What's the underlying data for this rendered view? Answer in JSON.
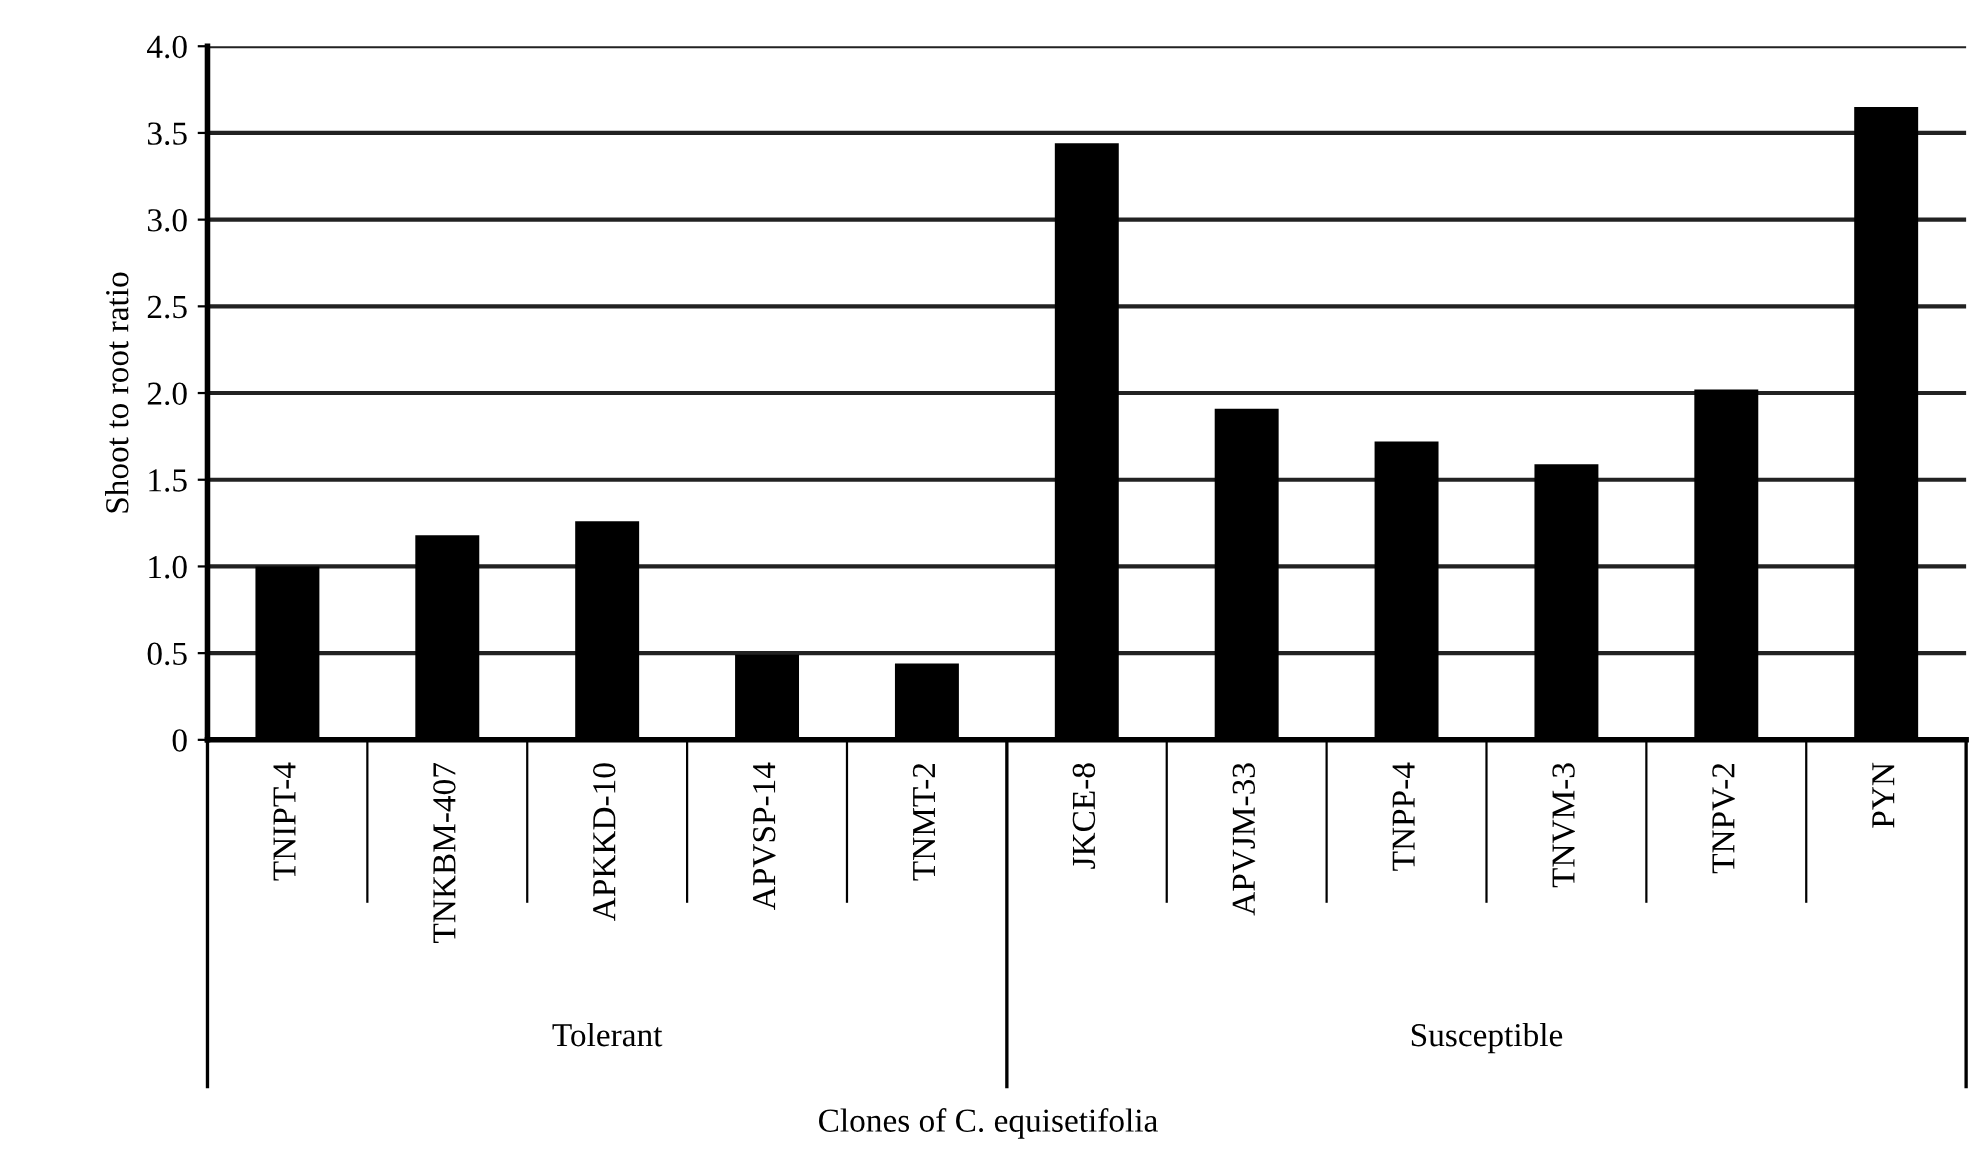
{
  "chart_data": {
    "type": "bar",
    "xlabel": "Clones of C. equisetifolia",
    "ylabel": "Shoot to root ratio",
    "categories": [
      "TNIPT-4",
      "TNKBM-407",
      "APKKD-10",
      "APVSP-14",
      "TNMT-2",
      "JKCE-8",
      "APVJM-33",
      "TNPP-4",
      "TNVM-3",
      "TNPV-2",
      "PYN"
    ],
    "values": [
      1.0,
      1.18,
      1.26,
      0.49,
      0.44,
      3.44,
      1.91,
      1.72,
      1.59,
      2.02,
      3.65
    ],
    "color": "#000000",
    "ylim": [
      0,
      4.0
    ],
    "yticks": [
      {
        "value": 0,
        "label": "0"
      },
      0.5,
      {
        "value": 1,
        "label": "1.0"
      },
      1.5,
      {
        "value": 2,
        "label": "2.0"
      },
      2.5,
      {
        "value": 3,
        "label": "3.0"
      },
      3.5,
      {
        "value": 4,
        "label": "4.0"
      }
    ],
    "grid": "y",
    "annotations": [
      "Tolerant",
      "Susceptible"
    ]
  }
}
